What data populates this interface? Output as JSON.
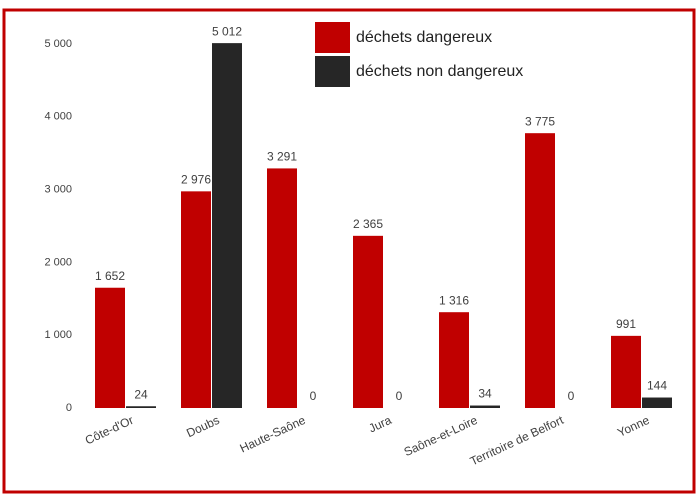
{
  "chart_data": {
    "type": "bar",
    "categories": [
      "Côte-d'Or",
      "Doubs",
      "Haute-Saône",
      "Jura",
      "Saône-et-Loire",
      "Territoire de Belfort",
      "Yonne"
    ],
    "series": [
      {
        "name": "déchets dangereux",
        "color": "#c00000",
        "values": [
          1652,
          2976,
          3291,
          2365,
          1316,
          3775,
          991
        ],
        "value_labels": [
          "1 652",
          "2 976",
          "3 291",
          "2 365",
          "1 316",
          "3 775",
          "991"
        ]
      },
      {
        "name": "déchets non dangereux",
        "color": "#262626",
        "values": [
          24,
          5012,
          0,
          0,
          34,
          0,
          144
        ],
        "value_labels": [
          "24",
          "5 012",
          "0",
          "0",
          "34",
          "0",
          "144"
        ]
      }
    ],
    "ylim": [
      0,
      5000
    ],
    "yticks": [
      0,
      {
        "value": 1000,
        "label": "1 000"
      },
      {
        "value": 2000,
        "label": "2 000"
      },
      {
        "value": 3000,
        "label": "3 000"
      },
      {
        "value": 4000,
        "label": "4 000"
      },
      {
        "value": 5000,
        "label": "5 000"
      }
    ],
    "grid": false,
    "legend": "top-right"
  }
}
